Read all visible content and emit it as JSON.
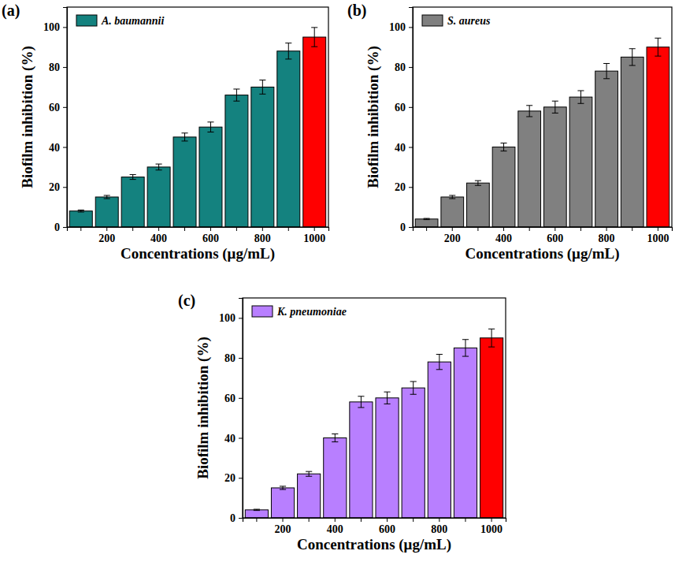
{
  "chart_data": [
    {
      "type": "bar",
      "title": "(a)",
      "x_label": "Concentrations (μg/mL)",
      "y_label": "Biofilm inhibition (%)",
      "categories": [
        null,
        "200",
        null,
        "400",
        null,
        "600",
        null,
        "800",
        null,
        "1000"
      ],
      "series": [
        {
          "name": "A. baumannii",
          "colors": [
            "#14827f",
            "#14827f",
            "#14827f",
            "#14827f",
            "#14827f",
            "#14827f",
            "#14827f",
            "#14827f",
            "#14827f",
            "#ff0000"
          ],
          "values": [
            8,
            15,
            25,
            30,
            45,
            50,
            66,
            70,
            88,
            95
          ],
          "errors": [
            0.5,
            0.8,
            1.2,
            1.5,
            2,
            2.5,
            3,
            3.5,
            4,
            4.8
          ]
        }
      ],
      "ylim": [
        0,
        110
      ],
      "yticks": [
        0,
        20,
        40,
        60,
        80,
        100
      ],
      "legend": "upper left"
    },
    {
      "type": "bar",
      "title": "(b)",
      "x_label": "Concentrations (μg/mL)",
      "y_label": "Biofilm inhibition (%)",
      "categories": [
        null,
        "200",
        null,
        "400",
        null,
        "600",
        null,
        "800",
        null,
        "1000"
      ],
      "series": [
        {
          "name": "S. aureus",
          "colors": [
            "#808080",
            "#808080",
            "#808080",
            "#808080",
            "#808080",
            "#808080",
            "#808080",
            "#808080",
            "#808080",
            "#ff0000"
          ],
          "values": [
            4,
            15,
            22,
            40,
            58,
            60,
            65,
            78,
            85,
            90
          ],
          "errors": [
            0.3,
            0.8,
            1.2,
            2,
            2.8,
            3,
            3.2,
            3.8,
            4.2,
            4.5
          ]
        }
      ],
      "ylim": [
        0,
        110
      ],
      "yticks": [
        0,
        20,
        40,
        60,
        80,
        100
      ],
      "legend": "upper left"
    },
    {
      "type": "bar",
      "title": "(c)",
      "x_label": "Concentrations (μg/mL)",
      "y_label": "Biofilm inhibition (%)",
      "categories": [
        null,
        "200",
        null,
        "400",
        null,
        "600",
        null,
        "800",
        null,
        "1000"
      ],
      "series": [
        {
          "name": "K. pneumoniae",
          "colors": [
            "#b87fff",
            "#b87fff",
            "#b87fff",
            "#b87fff",
            "#b87fff",
            "#b87fff",
            "#b87fff",
            "#b87fff",
            "#b87fff",
            "#ff0000"
          ],
          "values": [
            4,
            15,
            22,
            40,
            58,
            60,
            65,
            78,
            85,
            90
          ],
          "errors": [
            0.3,
            0.8,
            1.2,
            2,
            2.8,
            3,
            3.2,
            3.8,
            4.2,
            4.5
          ]
        }
      ],
      "ylim": [
        0,
        110
      ],
      "yticks": [
        0,
        20,
        40,
        60,
        80,
        100
      ],
      "legend": "upper left"
    }
  ]
}
